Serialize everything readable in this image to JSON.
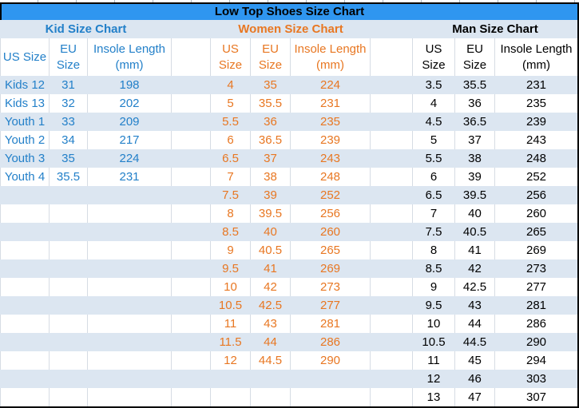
{
  "title": "Low Top Shoes Size Chart",
  "colors": {
    "title-bg": "#2F96F0",
    "stripe": "#DCE6F1",
    "kid": "#2380C9",
    "women": "#E87722",
    "man": "#000000",
    "grid": "#D6DCE4",
    "border": "#000000"
  },
  "chart_data": [
    {
      "type": "table",
      "key": "kid",
      "title": "Kid Size Chart",
      "columns": [
        "US Size",
        "EU Size",
        "Insole Length (mm)"
      ],
      "rows": [
        [
          "Kids 12",
          "31",
          "198"
        ],
        [
          "Kids 13",
          "32",
          "202"
        ],
        [
          "Youth 1",
          "33",
          "209"
        ],
        [
          "Youth 2",
          "34",
          "217"
        ],
        [
          "Youth 3",
          "35",
          "224"
        ],
        [
          "Youth 4",
          "35.5",
          "231"
        ]
      ]
    },
    {
      "type": "table",
      "key": "women",
      "title": "Women Size Chart",
      "columns": [
        "US Size",
        "EU Size",
        "Insole Length (mm)"
      ],
      "rows": [
        [
          "4",
          "35",
          "224"
        ],
        [
          "5",
          "35.5",
          "231"
        ],
        [
          "5.5",
          "36",
          "235"
        ],
        [
          "6",
          "36.5",
          "239"
        ],
        [
          "6.5",
          "37",
          "243"
        ],
        [
          "7",
          "38",
          "248"
        ],
        [
          "7.5",
          "39",
          "252"
        ],
        [
          "8",
          "39.5",
          "256"
        ],
        [
          "8.5",
          "40",
          "260"
        ],
        [
          "9",
          "40.5",
          "265"
        ],
        [
          "9.5",
          "41",
          "269"
        ],
        [
          "10",
          "42",
          "273"
        ],
        [
          "10.5",
          "42.5",
          "277"
        ],
        [
          "11",
          "43",
          "281"
        ],
        [
          "11.5",
          "44",
          "286"
        ],
        [
          "12",
          "44.5",
          "290"
        ]
      ]
    },
    {
      "type": "table",
      "key": "man",
      "title": "Man Size Chart",
      "columns": [
        "US Size",
        "EU Size",
        "Insole Length (mm)"
      ],
      "rows": [
        [
          "3.5",
          "35.5",
          "231"
        ],
        [
          "4",
          "36",
          "235"
        ],
        [
          "4.5",
          "36.5",
          "239"
        ],
        [
          "5",
          "37",
          "243"
        ],
        [
          "5.5",
          "38",
          "248"
        ],
        [
          "6",
          "39",
          "252"
        ],
        [
          "6.5",
          "39.5",
          "256"
        ],
        [
          "7",
          "40",
          "260"
        ],
        [
          "7.5",
          "40.5",
          "265"
        ],
        [
          "8",
          "41",
          "269"
        ],
        [
          "8.5",
          "42",
          "273"
        ],
        [
          "9",
          "42.5",
          "277"
        ],
        [
          "9.5",
          "43",
          "281"
        ],
        [
          "10",
          "44",
          "286"
        ],
        [
          "10.5",
          "44.5",
          "290"
        ],
        [
          "11",
          "45",
          "294"
        ],
        [
          "12",
          "46",
          "303"
        ],
        [
          "13",
          "47",
          "307"
        ]
      ]
    }
  ]
}
